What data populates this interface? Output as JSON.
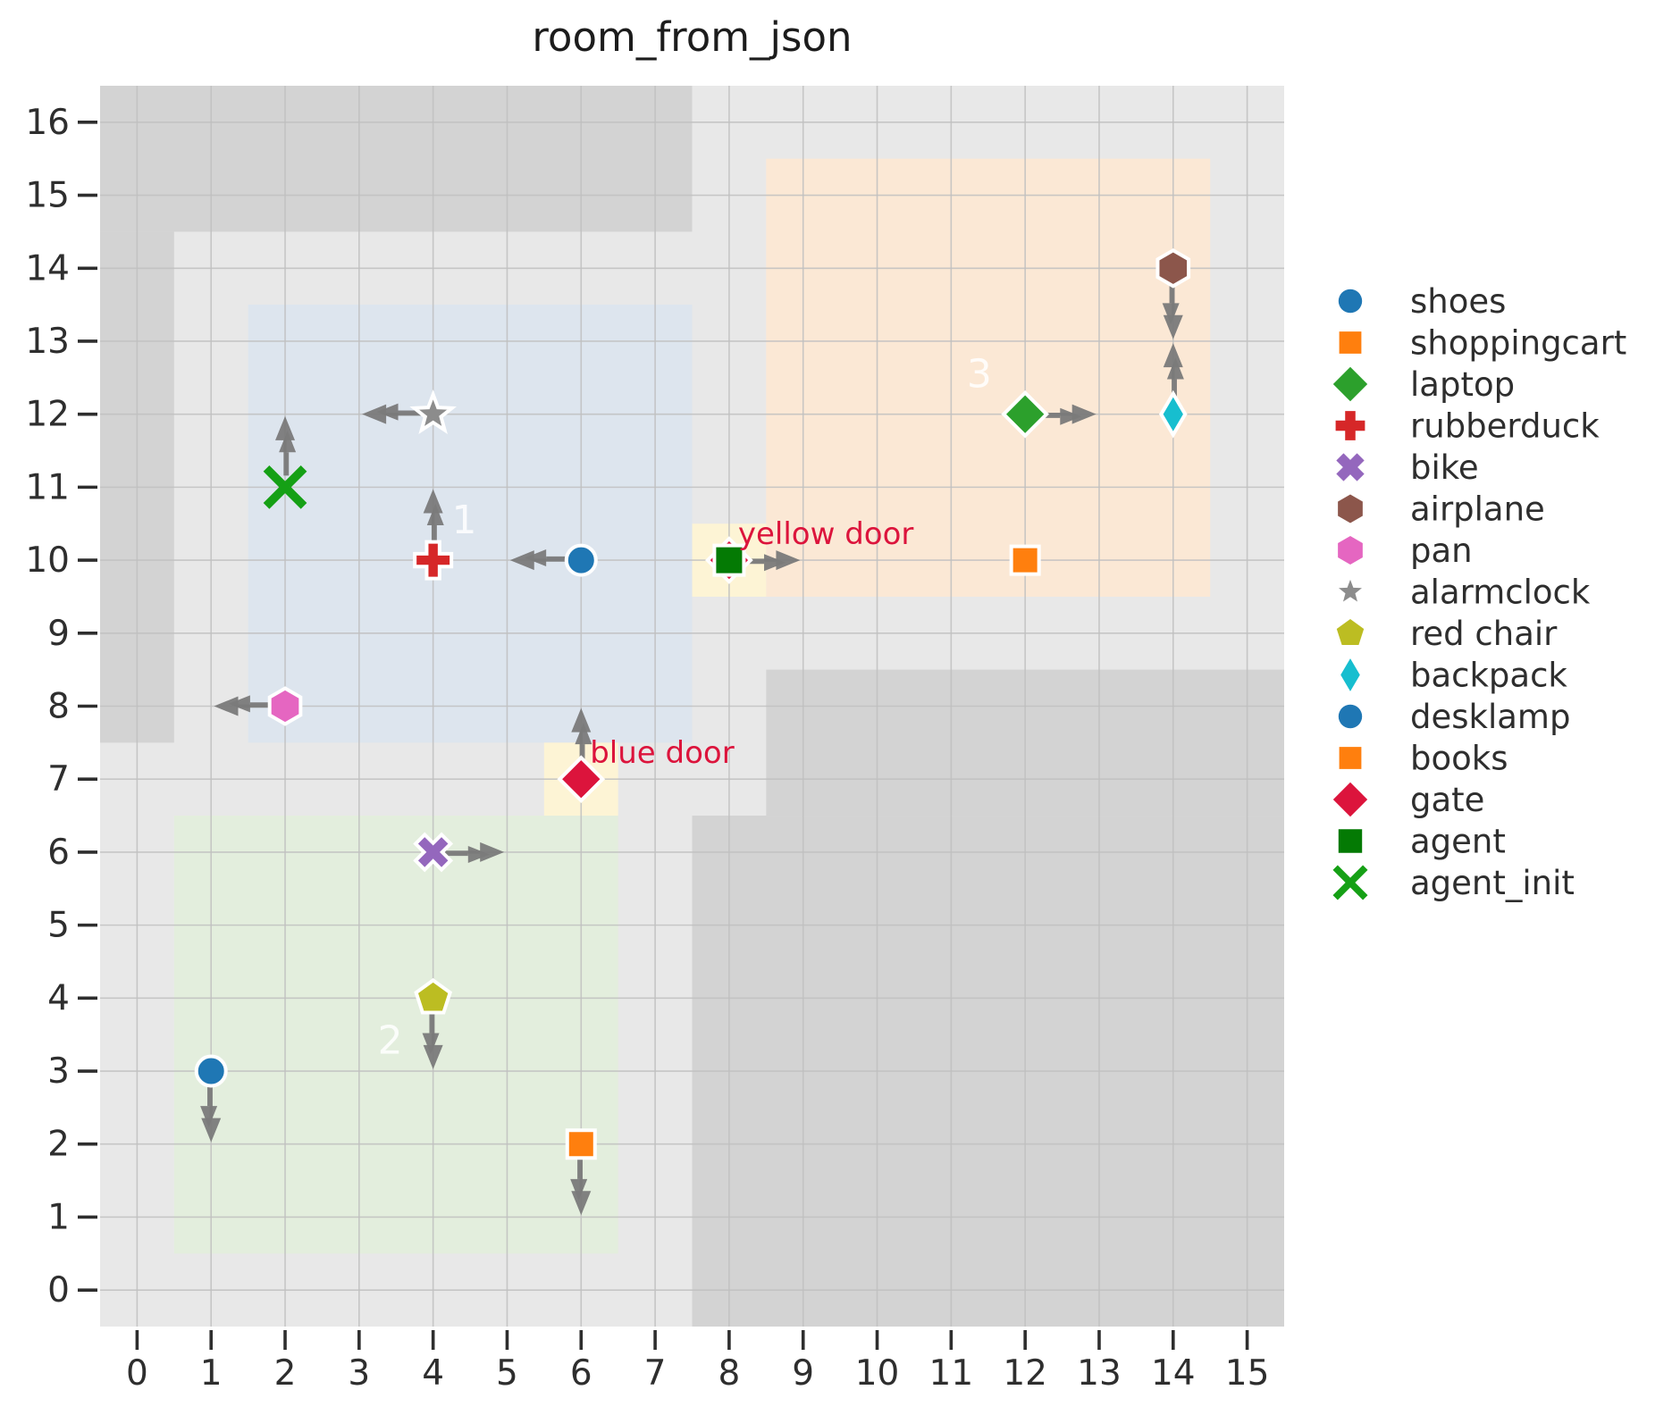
{
  "title": "room_from_json",
  "colors": {
    "figure_bg": "#ffffff",
    "floor": "#e8e8e8",
    "wall": "#d3d3d3",
    "grid": "#c0bfbf",
    "arrow": "#7a7a7a",
    "door_fill": "#fdf4d5",
    "door_text": "#dc143c",
    "room_label": "#ffffff",
    "tick_text": "#2e2e2e",
    "title_text": "#1c1c1c",
    "marker_edge": "#ffffff"
  },
  "chart_data": {
    "type": "scatter",
    "title": "room_from_json",
    "xlim": [
      -0.5,
      15.5
    ],
    "ylim": [
      -0.5,
      16.5
    ],
    "grid": true,
    "legend_position": "right",
    "x_tick_labels": [
      "0",
      "1",
      "2",
      "3",
      "4",
      "5",
      "6",
      "7",
      "8",
      "9",
      "10",
      "11",
      "12",
      "13",
      "14",
      "15"
    ],
    "y_tick_labels": [
      "0",
      "1",
      "2",
      "3",
      "4",
      "5",
      "6",
      "7",
      "8",
      "9",
      "10",
      "11",
      "12",
      "13",
      "14",
      "15",
      "16"
    ],
    "walls": [
      {
        "x0": -0.5,
        "y0": 14.5,
        "x1": 7.5,
        "y1": 16.5
      },
      {
        "x0": -0.5,
        "y0": 7.5,
        "x1": 0.5,
        "y1": 14.5
      },
      {
        "x0": 8.5,
        "y0": 6.5,
        "x1": 15.5,
        "y1": 8.5
      },
      {
        "x0": 7.5,
        "y0": -0.5,
        "x1": 15.5,
        "y1": 6.5
      }
    ],
    "rooms": [
      {
        "label": "1",
        "x0": 1.5,
        "y0": 7.5,
        "x1": 7.5,
        "y1": 13.5,
        "fill": "#dde5ee",
        "label_x": 4.42,
        "label_y": 10.55
      },
      {
        "label": "2",
        "x0": 0.5,
        "y0": 0.5,
        "x1": 6.5,
        "y1": 6.5,
        "fill": "#e3eedd",
        "label_x": 3.42,
        "label_y": 3.42
      },
      {
        "label": "3",
        "x0": 8.5,
        "y0": 9.5,
        "x1": 14.5,
        "y1": 15.5,
        "fill": "#fbe8d5",
        "label_x": 11.38,
        "label_y": 12.55
      }
    ],
    "doors": [
      {
        "name": "yellow-door",
        "label": "yellow door",
        "cell_x": 8,
        "cell_y": 10,
        "label_x": 8.12,
        "label_y": 10.22
      },
      {
        "name": "blue-door",
        "label": "blue door",
        "cell_x": 6,
        "cell_y": 7,
        "label_x": 6.12,
        "label_y": 7.22
      }
    ],
    "marker_defs": {
      "shoes": {
        "marker": "circle",
        "color": "#1f77b4"
      },
      "shoppingcart": {
        "marker": "square",
        "color": "#ff7f0e"
      },
      "laptop": {
        "marker": "diamond",
        "color": "#2ca02c"
      },
      "rubberduck": {
        "marker": "plus",
        "color": "#d62728"
      },
      "bike": {
        "marker": "xmark",
        "color": "#9467bd"
      },
      "airplane": {
        "marker": "hexagon",
        "color": "#8c564b"
      },
      "pan": {
        "marker": "hexagon",
        "color": "#e566c1"
      },
      "alarmclock": {
        "marker": "star",
        "color": "#8c8c8c"
      },
      "red chair": {
        "marker": "pentagon",
        "color": "#bcbd22"
      },
      "backpack": {
        "marker": "thin_diamond",
        "color": "#17becf"
      },
      "desklamp": {
        "marker": "circle",
        "color": "#1f77b4"
      },
      "books": {
        "marker": "square",
        "color": "#ff7f0e"
      },
      "gate": {
        "marker": "diamond",
        "color": "#dc143c"
      },
      "agent": {
        "marker": "square_big",
        "color": "#047a04"
      },
      "agent_init": {
        "marker": "xstroke",
        "color": "#15a015"
      }
    },
    "placements": [
      {
        "id": "pan",
        "name": "pan",
        "x": 2,
        "y": 8,
        "dir": "left"
      },
      {
        "id": "alarmclock",
        "name": "alarmclock",
        "x": 4,
        "y": 12,
        "dir": "left"
      },
      {
        "id": "agent-init",
        "name": "agent_init",
        "x": 2,
        "y": 11,
        "dir": "up"
      },
      {
        "id": "rubberduck",
        "name": "rubberduck",
        "x": 4,
        "y": 10,
        "dir": "up"
      },
      {
        "id": "shoes",
        "name": "shoes",
        "x": 6,
        "y": 10,
        "dir": "left"
      },
      {
        "id": "bike",
        "name": "bike",
        "x": 4,
        "y": 6,
        "dir": "right"
      },
      {
        "id": "red-chair",
        "name": "red chair",
        "x": 4,
        "y": 4,
        "dir": "down"
      },
      {
        "id": "desklamp",
        "name": "desklamp",
        "x": 1,
        "y": 3,
        "dir": "down"
      },
      {
        "id": "books",
        "name": "books",
        "x": 6,
        "y": 2,
        "dir": "down"
      },
      {
        "id": "laptop",
        "name": "laptop",
        "x": 12,
        "y": 12,
        "dir": "right"
      },
      {
        "id": "shoppingcart",
        "name": "shoppingcart",
        "x": 12,
        "y": 10,
        "dir": null
      },
      {
        "id": "airplane",
        "name": "airplane",
        "x": 14,
        "y": 14,
        "dir": "down"
      },
      {
        "id": "backpack",
        "name": "backpack",
        "x": 14,
        "y": 12,
        "dir": "up"
      },
      {
        "id": "gate-blue-door",
        "name": "gate",
        "x": 6,
        "y": 7,
        "dir": "up"
      },
      {
        "id": "gate-yellow-door",
        "name": "gate",
        "x": 8,
        "y": 10,
        "dir": null
      },
      {
        "id": "agent",
        "name": "agent",
        "x": 8,
        "y": 10,
        "dir": "right"
      }
    ]
  },
  "legend": [
    {
      "label": "shoes",
      "ref": "shoes"
    },
    {
      "label": "shoppingcart",
      "ref": "shoppingcart"
    },
    {
      "label": "laptop",
      "ref": "laptop"
    },
    {
      "label": "rubberduck",
      "ref": "rubberduck"
    },
    {
      "label": "bike",
      "ref": "bike"
    },
    {
      "label": "airplane",
      "ref": "airplane"
    },
    {
      "label": "pan",
      "ref": "pan"
    },
    {
      "label": "alarmclock",
      "ref": "alarmclock"
    },
    {
      "label": "red chair",
      "ref": "red chair"
    },
    {
      "label": "backpack",
      "ref": "backpack"
    },
    {
      "label": "desklamp",
      "ref": "desklamp"
    },
    {
      "label": "books",
      "ref": "books"
    },
    {
      "label": "gate",
      "ref": "gate"
    },
    {
      "label": "agent",
      "ref": "agent"
    },
    {
      "label": "agent_init",
      "ref": "agent_init"
    }
  ]
}
